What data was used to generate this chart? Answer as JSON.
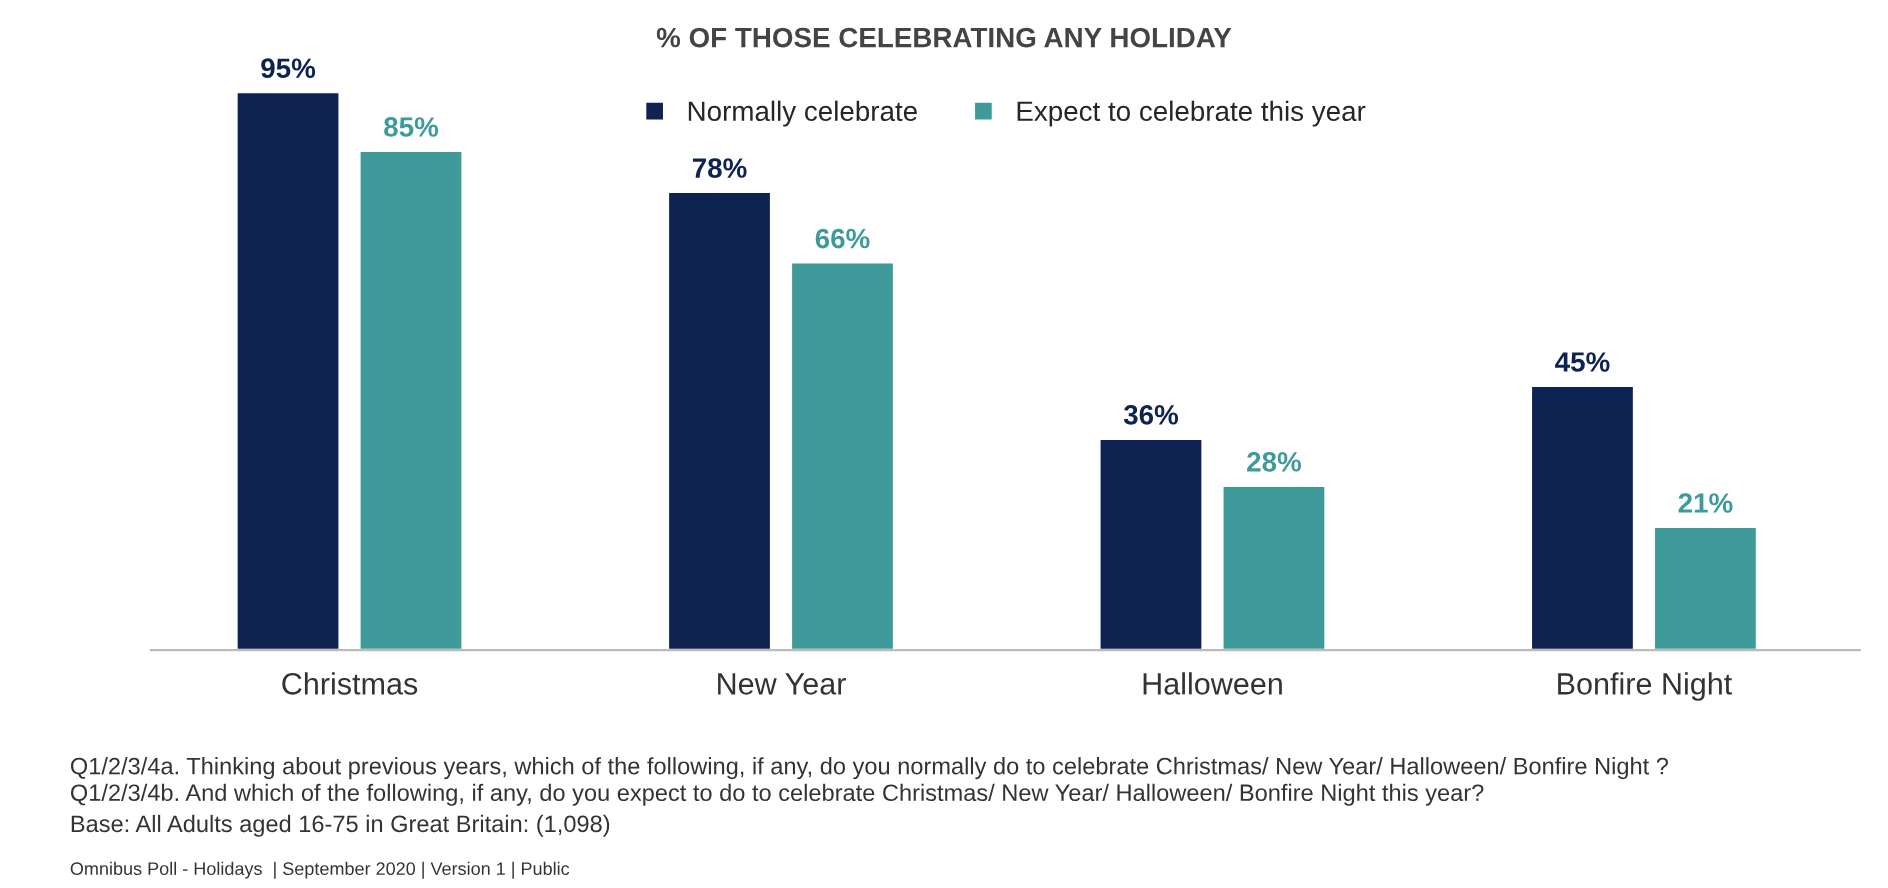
{
  "chart_data": {
    "type": "bar",
    "title": "% OF THOSE CELEBRATING ANY HOLIDAY",
    "categories": [
      "Christmas",
      "New Year",
      "Halloween",
      "Bonfire Night"
    ],
    "series": [
      {
        "name": "Normally celebrate",
        "color": "#0f2352",
        "values": [
          95,
          78,
          36,
          45
        ],
        "value_labels": [
          "95%",
          "78%",
          "36%",
          "45%"
        ]
      },
      {
        "name": "Expect to celebrate this year",
        "color": "#3f9a9a",
        "values": [
          85,
          66,
          28,
          21
        ],
        "value_labels": [
          "85%",
          "66%",
          "28%",
          "21%"
        ]
      }
    ],
    "legend": "top",
    "grid": false,
    "tick_labels": "x",
    "annotations": [
      "Q1/2/3/4a. Thinking about previous years, which of the following, if any, do you normally do to celebrate Christmas/ New Year/ Halloween/ Bonfire Night ?",
      "Q1/2/3/4b. And which of the following, if any, do you expect to do to celebrate Christmas/ New Year/ Halloween/ Bonfire Night this year?",
      "Base: All Adults aged 16-75 in Great Britain: (1,098)",
      "Omnibus Poll - Holidays  | September 2020 | Version 1 | Public"
    ]
  }
}
